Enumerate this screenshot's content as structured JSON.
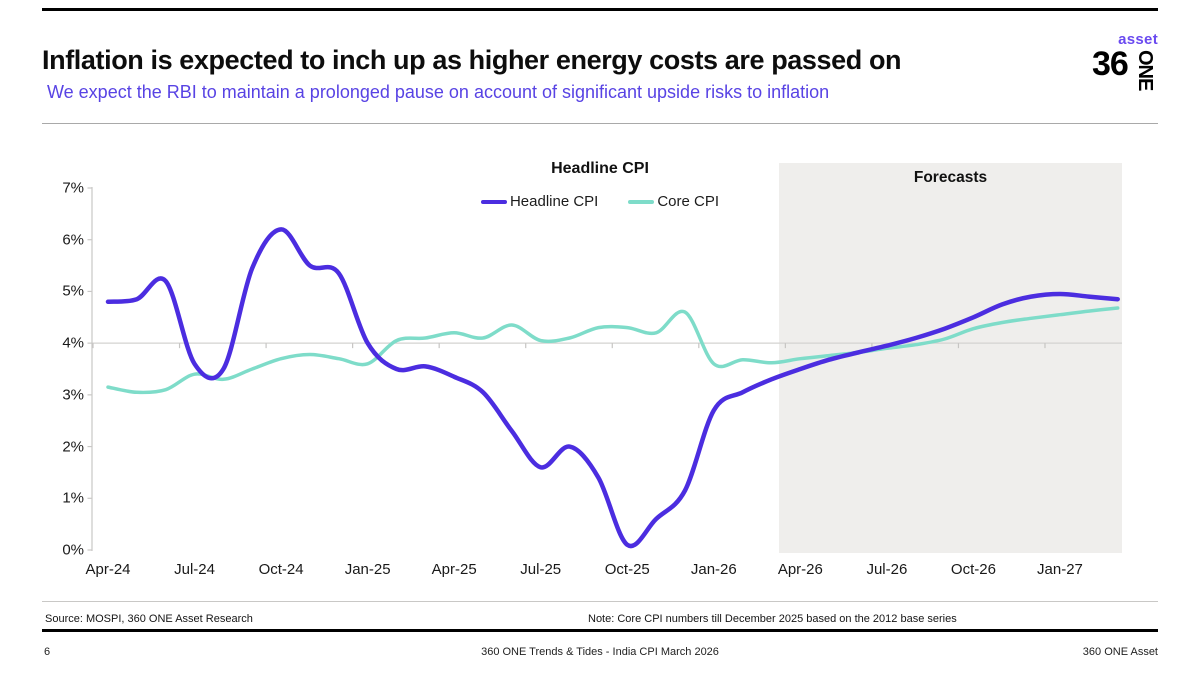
{
  "header": {
    "title": "Inflation is expected to inch up as higher energy costs are passed on",
    "subtitle": "We expect the RBI to maintain a prolonged pause on account of significant upside risks to inflation",
    "logo": {
      "top": "asset",
      "number": "36",
      "vertical": "ONE"
    }
  },
  "chart": {
    "title": "Headline CPI",
    "forecast_label": "Forecasts"
  },
  "chart_data": {
    "type": "line",
    "title": "Headline CPI",
    "ylabel": "",
    "xlabel": "",
    "ylim": [
      0,
      7
    ],
    "grid": "single horizontal gridline at 4% with quarterly tick marks",
    "axis_gridline_at": 4,
    "legend_position": "top-center",
    "y_tick_labels": [
      "0%",
      "1%",
      "2%",
      "3%",
      "4%",
      "5%",
      "6%",
      "7%"
    ],
    "x_tick_labels": [
      "Apr-24",
      "Jul-24",
      "Oct-24",
      "Jan-25",
      "Apr-25",
      "Jul-25",
      "Oct-25",
      "Jan-26",
      "Apr-26",
      "Jul-26",
      "Oct-26",
      "Jan-27"
    ],
    "x": [
      "Apr-24",
      "May-24",
      "Jun-24",
      "Jul-24",
      "Aug-24",
      "Sep-24",
      "Oct-24",
      "Nov-24",
      "Dec-24",
      "Jan-25",
      "Feb-25",
      "Mar-25",
      "Apr-25",
      "May-25",
      "Jun-25",
      "Jul-25",
      "Aug-25",
      "Sep-25",
      "Oct-25",
      "Nov-25",
      "Dec-25",
      "Jan-26",
      "Feb-26",
      "Mar-26",
      "Apr-26",
      "May-26",
      "Jun-26",
      "Jul-26",
      "Aug-26",
      "Sep-26",
      "Oct-26",
      "Nov-26",
      "Dec-26",
      "Jan-27",
      "Feb-27",
      "Mar-27"
    ],
    "series": [
      {
        "name": "Headline CPI",
        "color": "#4b2de0",
        "width": 4.5,
        "values": [
          4.8,
          4.85,
          5.2,
          3.6,
          3.5,
          5.45,
          6.2,
          5.5,
          5.35,
          4.0,
          3.5,
          3.55,
          3.35,
          3.05,
          2.3,
          1.6,
          2.0,
          1.4,
          0.1,
          0.6,
          1.15,
          2.7,
          3.05,
          3.3,
          3.5,
          3.68,
          3.82,
          3.95,
          4.1,
          4.28,
          4.5,
          4.75,
          4.9,
          4.95,
          4.9,
          4.85
        ]
      },
      {
        "name": "Core CPI",
        "color": "#7edcc9",
        "width": 3.5,
        "values": [
          3.15,
          3.05,
          3.1,
          3.4,
          3.3,
          3.5,
          3.7,
          3.78,
          3.7,
          3.6,
          4.05,
          4.1,
          4.2,
          4.1,
          4.35,
          4.05,
          4.1,
          4.3,
          4.3,
          4.2,
          4.6,
          3.6,
          3.68,
          3.62,
          3.7,
          3.76,
          3.82,
          3.9,
          3.97,
          4.08,
          4.28,
          4.4,
          4.48,
          4.55,
          4.62,
          4.68
        ]
      }
    ],
    "forecast": {
      "label": "Forecasts",
      "start": "Apr-26",
      "box_color": "#efeeec",
      "start_month_frac": 23.26,
      "end_month_frac": 35.15
    }
  },
  "footnotes": {
    "source": "Source: MOSPI, 360 ONE Asset Research",
    "note": "Note: Core CPI numbers till December 2025 based on the 2012 base series"
  },
  "footer": {
    "page_number": "6",
    "center": "360 ONE Trends & Tides - India CPI March 2026",
    "right": "360 ONE Asset"
  }
}
